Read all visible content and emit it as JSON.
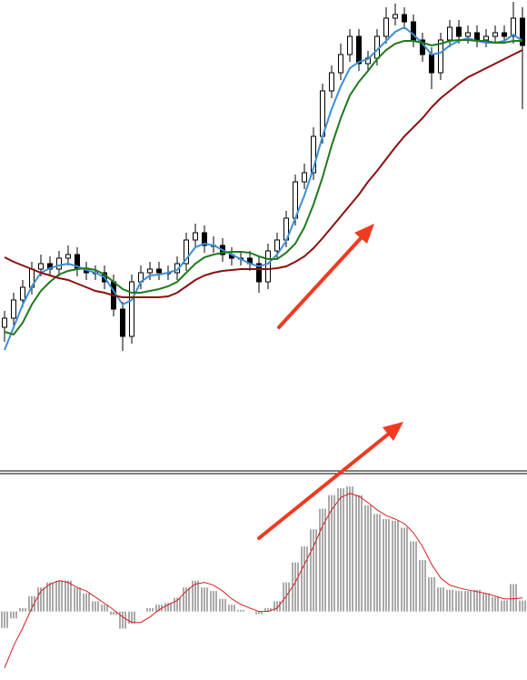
{
  "chart_data": [
    {
      "type": "candlestick",
      "open": [
        10,
        12.5,
        17.5,
        21,
        26,
        27.5,
        26,
        29,
        30,
        26,
        25,
        25,
        22.5,
        15,
        7.5,
        22.5,
        25,
        26,
        25,
        25,
        27.5,
        34,
        36,
        32.5,
        32.5,
        30,
        29,
        29,
        27.5,
        22.5,
        31,
        34,
        40,
        50,
        52.5,
        62.5,
        75,
        80,
        85,
        90,
        82.5,
        84,
        90,
        95,
        96,
        94,
        89,
        85,
        80,
        89,
        92.5,
        90,
        91,
        89,
        90,
        91,
        90,
        95
      ],
      "high": [
        14.5,
        19.5,
        23,
        28,
        30,
        29.5,
        31,
        32.5,
        32,
        28,
        27,
        27,
        24.5,
        17,
        24.5,
        27,
        28,
        28,
        27,
        29.5,
        36,
        38.5,
        38,
        35,
        34.5,
        32,
        31,
        31,
        29.5,
        33,
        36,
        42,
        52,
        55,
        65,
        77,
        82,
        88,
        92,
        92,
        86,
        92,
        98,
        99,
        98,
        96,
        91,
        87,
        91,
        94.5,
        94.5,
        93,
        93,
        92,
        93,
        93,
        99.5,
        98
      ],
      "low": [
        6,
        10.5,
        15.5,
        19,
        24,
        24,
        24,
        27,
        24,
        23,
        23,
        20.5,
        13,
        3.5,
        5.5,
        20.5,
        23,
        23,
        23,
        23,
        25.5,
        32,
        30.5,
        30.5,
        28,
        27,
        27,
        25.5,
        19.5,
        20.5,
        29,
        32,
        38,
        48,
        50.5,
        60.5,
        73,
        78,
        83,
        80.5,
        80.5,
        82,
        88,
        93,
        92,
        87,
        83,
        75.5,
        78,
        87,
        88,
        88,
        87,
        87,
        88,
        88,
        88,
        70
      ],
      "close": [
        12.5,
        17.5,
        21,
        26,
        27.5,
        26,
        29,
        30,
        26,
        25,
        25,
        22.5,
        15,
        7.5,
        22.5,
        25,
        26,
        25,
        25,
        27.5,
        34,
        36,
        32.5,
        32.5,
        30,
        29,
        29,
        27.5,
        22.5,
        31,
        34,
        40,
        50,
        52.5,
        62.5,
        75,
        80,
        85,
        90,
        82.5,
        84,
        90,
        95,
        96,
        94,
        89,
        85,
        80,
        89,
        92.5,
        90,
        91,
        89,
        90,
        91,
        90,
        95,
        87.5
      ],
      "series": [
        {
          "color": "#3b8fd9",
          "values": [
            3.75,
            10,
            16.25,
            21.25,
            25,
            26.25,
            27,
            27.5,
            26.75,
            25.75,
            25,
            23.75,
            20,
            16.25,
            17.5,
            22.5,
            24.25,
            24.5,
            25,
            25.75,
            28.75,
            32,
            33,
            32.5,
            31.25,
            30,
            28.75,
            27.5,
            26.75,
            27.5,
            30,
            33.75,
            40,
            46.25,
            53.75,
            62.5,
            70,
            76.25,
            81.25,
            83,
            83.75,
            86.25,
            88.75,
            91.25,
            92.5,
            90.5,
            88,
            85,
            85.5,
            87.5,
            88.75,
            89.5,
            88.75,
            88.25,
            88.25,
            88.75,
            90.5,
            88.75
          ]
        },
        {
          "color": "#1f7a1f",
          "values": [
            8.75,
            8,
            11.25,
            16.25,
            20,
            22.5,
            24.5,
            25.5,
            26,
            26.25,
            25.75,
            24.5,
            22.5,
            20.5,
            19.5,
            19.5,
            20,
            20.5,
            21.25,
            22.5,
            25,
            27.5,
            29.25,
            30,
            30.5,
            30.75,
            30.75,
            30.5,
            29.5,
            28.75,
            28.75,
            30.5,
            33,
            37.5,
            43.75,
            51.25,
            60,
            67.5,
            73.75,
            77.5,
            80.5,
            83.75,
            86.25,
            88,
            88.75,
            88.75,
            88.25,
            87.5,
            88,
            88.75,
            89,
            89,
            88.75,
            88.75,
            88.25,
            88.25,
            88.75,
            88.75
          ]
        },
        {
          "color": "#8b1010",
          "values": [
            29.25,
            28,
            27,
            26,
            25,
            24.25,
            23.5,
            23,
            22,
            21,
            20,
            19.5,
            18.75,
            18.25,
            18.25,
            18.25,
            18.25,
            18.25,
            18.5,
            19.5,
            21.25,
            23,
            24.25,
            25,
            25.5,
            25.75,
            26,
            26,
            26,
            26,
            26.25,
            26.75,
            28,
            29.5,
            31.75,
            34.5,
            37.5,
            40.5,
            43.5,
            46.5,
            50,
            53,
            56.25,
            59.5,
            62.5,
            65,
            67.5,
            70.5,
            73,
            75,
            77,
            78.75,
            80,
            81.25,
            82.5,
            83.75,
            85,
            86.25
          ]
        }
      ],
      "ylim": [
        0,
        100
      ]
    },
    {
      "type": "macd",
      "values": [
        -4.8,
        -2,
        1,
        4.5,
        7,
        8.5,
        9,
        9,
        7,
        5.3,
        3,
        2,
        -1,
        -5,
        -3.5,
        0,
        1,
        2,
        2.5,
        4,
        7,
        9,
        7,
        6,
        3.7,
        2,
        0.5,
        0,
        -0.8,
        1,
        3,
        8.5,
        14.3,
        19,
        24,
        30,
        34,
        36,
        36.5,
        34,
        31,
        28.5,
        27,
        26.5,
        24.5,
        20.5,
        15,
        10,
        7,
        6.3,
        6,
        6,
        6.3,
        5.3,
        4.2,
        3.2,
        8,
        3.2
      ],
      "color": "#555555",
      "signal": {
        "color": "#d42020",
        "values": [
          -16.5,
          -10,
          -4.8,
          1,
          6,
          8,
          9,
          8.5,
          7,
          6,
          4.2,
          2.4,
          0.5,
          -1.6,
          -3.2,
          -3.2,
          -1.6,
          0.5,
          2,
          3.2,
          6,
          8,
          8.5,
          7.7,
          6,
          3.7,
          2.1,
          1,
          0,
          0,
          1,
          4.5,
          8.5,
          13.8,
          19,
          25,
          29.7,
          33.3,
          34.5,
          33.7,
          31.8,
          29.7,
          28,
          27,
          25.7,
          23,
          19,
          13.8,
          9.8,
          7.7,
          6.9,
          6.3,
          5.8,
          5.3,
          4.5,
          3.7,
          3.7,
          4
        ]
      },
      "ylim": [
        -20,
        40
      ]
    }
  ]
}
